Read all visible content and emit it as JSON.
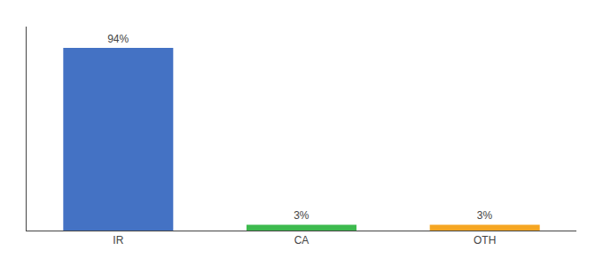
{
  "chart_data": {
    "type": "bar",
    "categories": [
      "IR",
      "CA",
      "OTH"
    ],
    "values": [
      94,
      3,
      3
    ],
    "value_labels": [
      "94%",
      "3%",
      "3%"
    ],
    "data_labels": true,
    "colors": [
      "#4472c4",
      "#3dba4e",
      "#f5a623"
    ],
    "ylim": [
      0,
      105
    ],
    "grid": false,
    "tick_labels": "x"
  }
}
